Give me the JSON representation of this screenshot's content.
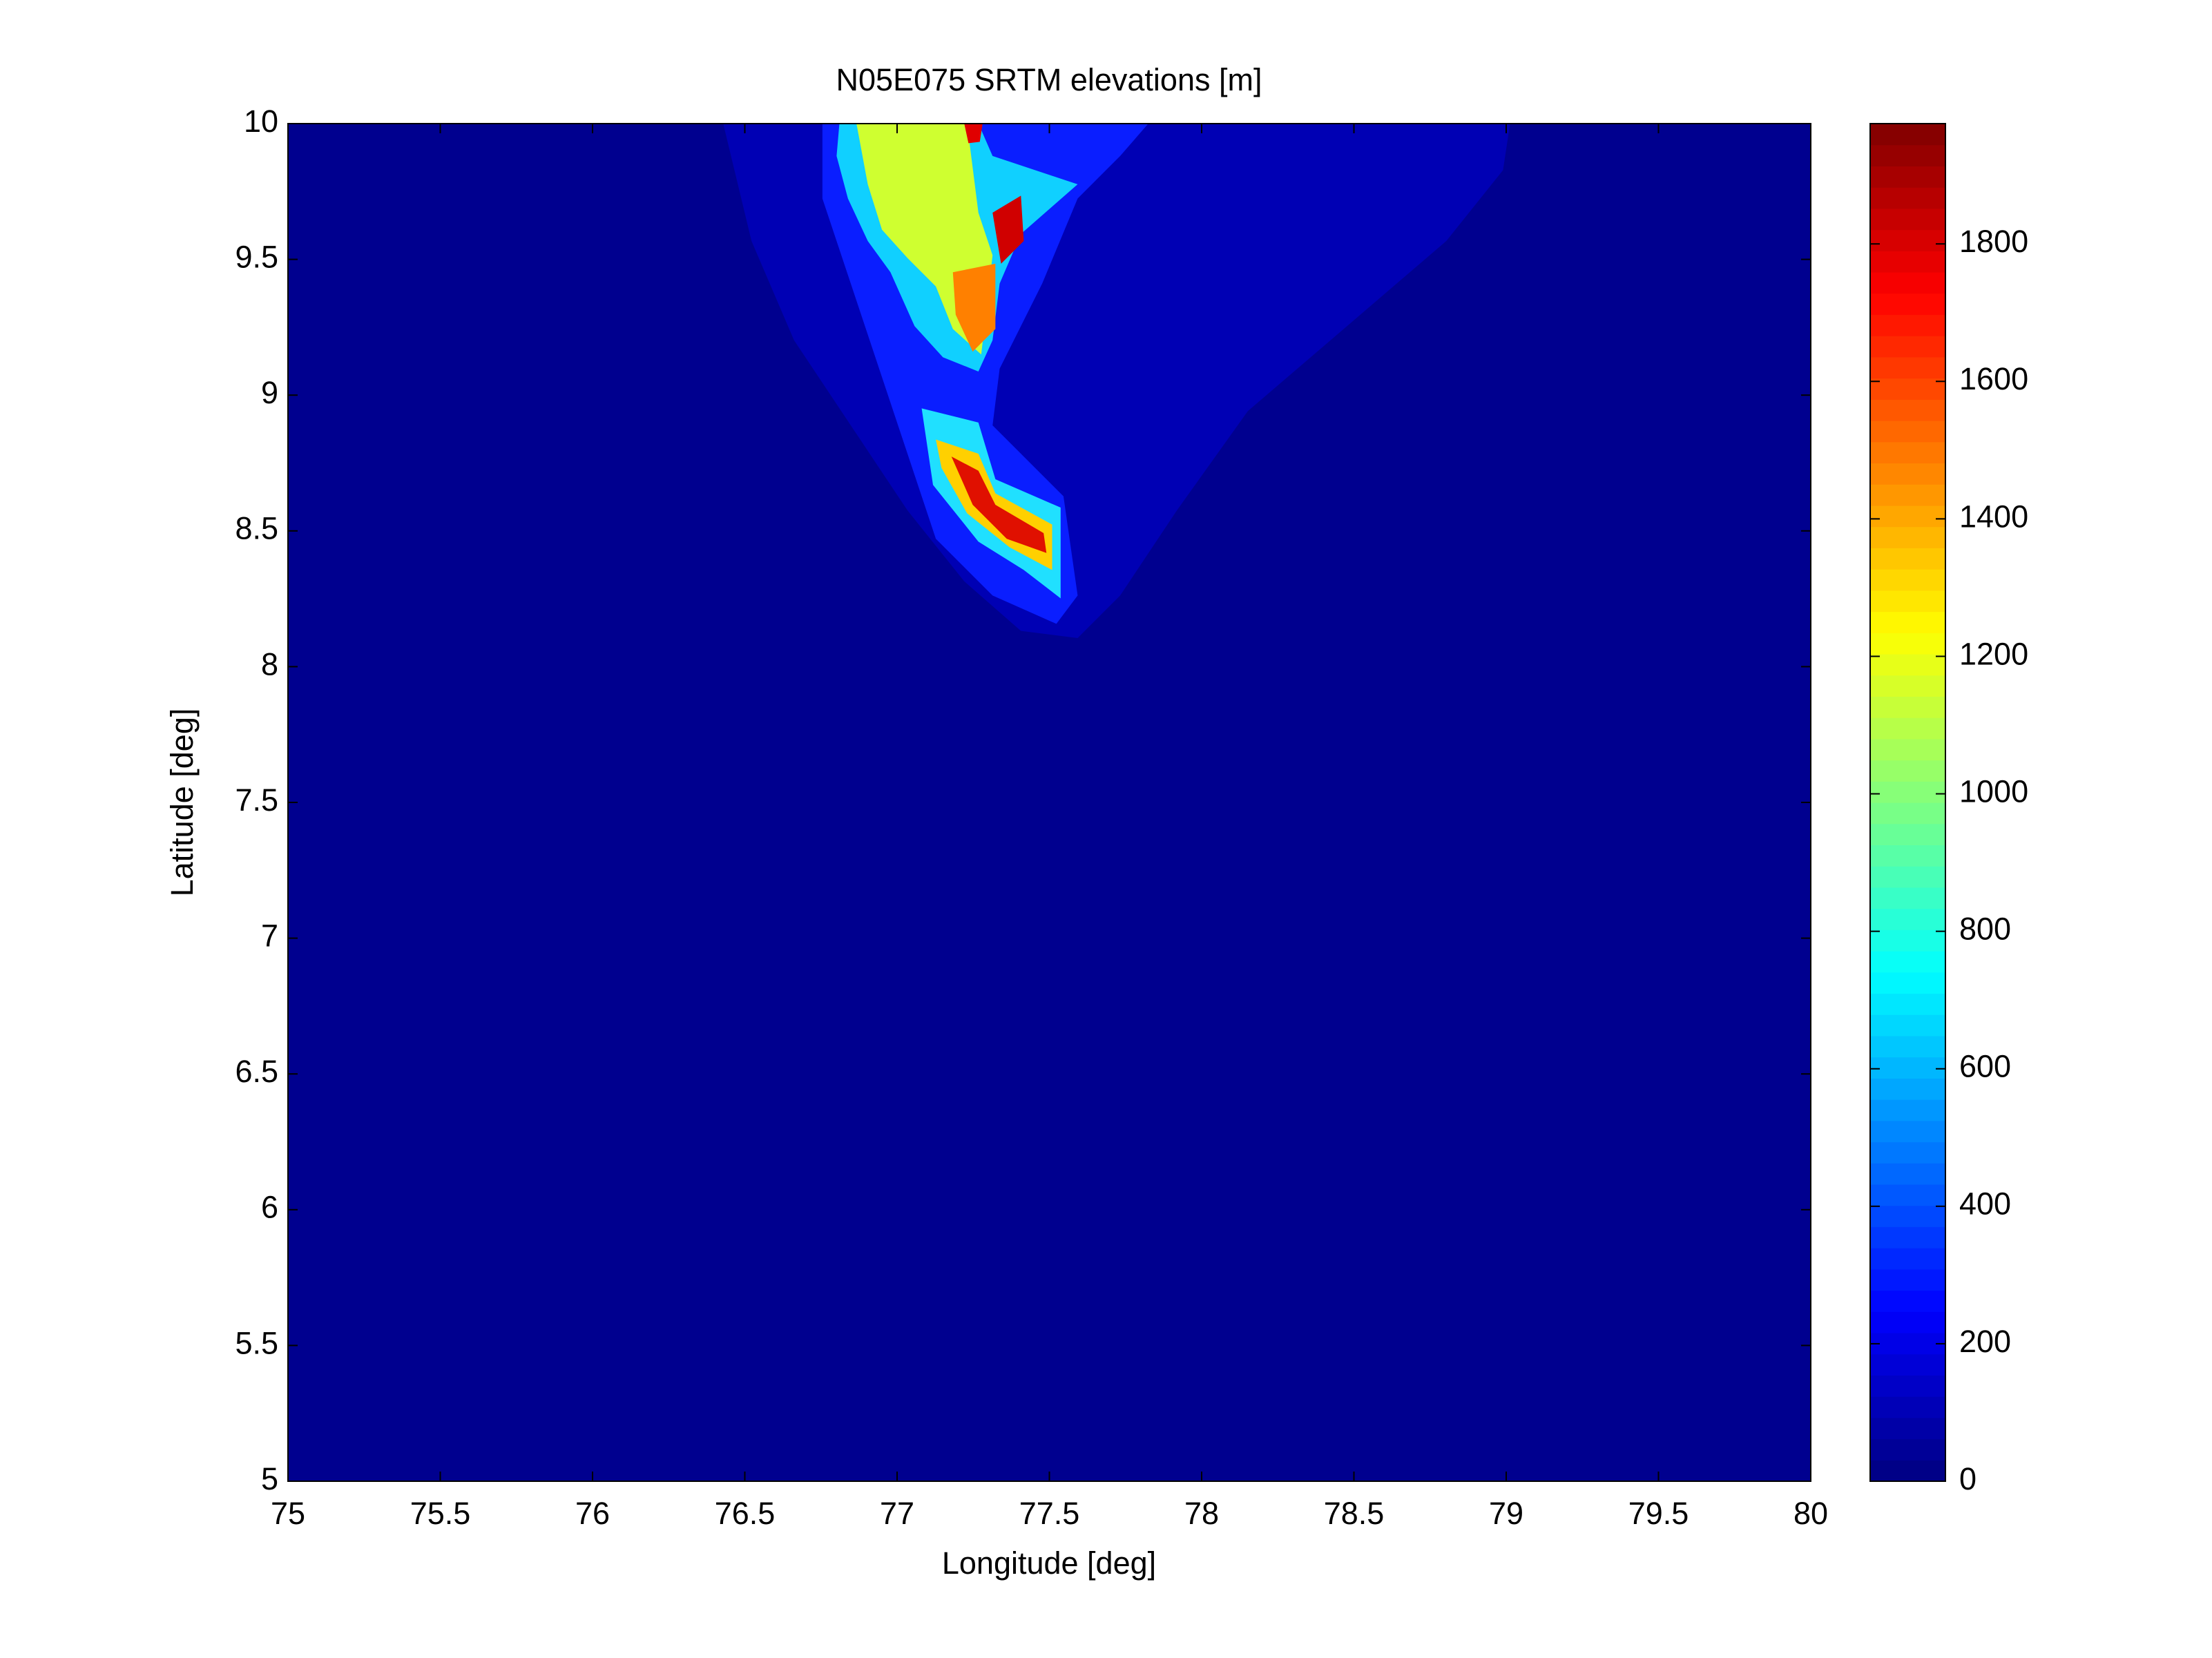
{
  "chart_data": {
    "type": "heatmap",
    "title": "N05E075 SRTM elevations [m]",
    "xlabel": "Longitude [deg]",
    "ylabel": "Latitude [deg]",
    "xlim": [
      75,
      80
    ],
    "xticks": [
      75,
      75.5,
      76,
      76.5,
      77,
      77.5,
      78,
      78.5,
      79,
      79.5,
      80
    ],
    "ylim": [
      5,
      10
    ],
    "yticks": [
      5,
      5.5,
      6,
      6.5,
      7,
      7.5,
      8,
      8.5,
      9,
      9.5,
      10
    ],
    "colormap": "jet",
    "clim": [
      0,
      1975
    ],
    "cticks": [
      0,
      200,
      400,
      600,
      800,
      1000,
      1200,
      1400,
      1600,
      1800
    ]
  }
}
